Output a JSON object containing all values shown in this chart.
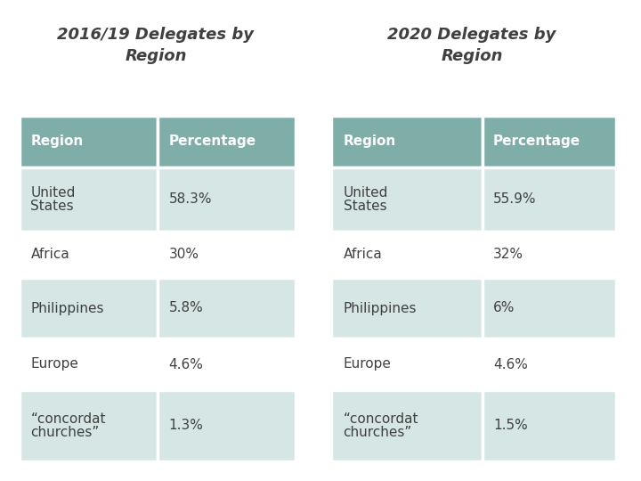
{
  "title1": "2016/19 Delegates by\nRegion",
  "title2": "2020 Delegates by\nRegion",
  "header": [
    "Region",
    "Percentage"
  ],
  "table1": [
    [
      "United\nStates",
      "58.3%"
    ],
    [
      "Africa",
      "30%"
    ],
    [
      "Philippines",
      "5.8%"
    ],
    [
      "Europe",
      "4.6%"
    ],
    [
      "“concordat\nchurches”",
      "1.3%"
    ]
  ],
  "table2": [
    [
      "United\nStates",
      "55.9%"
    ],
    [
      "Africa",
      "32%"
    ],
    [
      "Philippines",
      "6%"
    ],
    [
      "Europe",
      "4.6%"
    ],
    [
      "“concordat\nchurches”",
      "1.5%"
    ]
  ],
  "row_bg_pattern": [
    "teal",
    "white",
    "teal",
    "white",
    "teal"
  ],
  "header_color": "#7FADA8",
  "row_color_teal": "#D5E6E4",
  "row_color_white": "#FFFFFF",
  "bg_color": "#FFFFFF",
  "text_color_header": "#FFFFFF",
  "text_color_body": "#404040",
  "title_color": "#404040",
  "border_color": "#FFFFFF"
}
